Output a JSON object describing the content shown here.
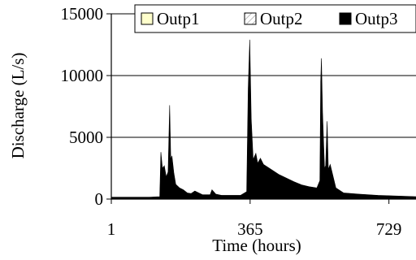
{
  "chart_data": {
    "type": "area",
    "title": "",
    "xlabel": "Time (hours)",
    "ylabel": "Discharge (L/s)",
    "xlim": [
      1,
      800
    ],
    "ylim": [
      0,
      15000
    ],
    "x_ticks": [
      1,
      365,
      729
    ],
    "x_tick_labels": [
      "1",
      "365",
      "729"
    ],
    "y_ticks": [
      0,
      5000,
      10000,
      15000
    ],
    "y_tick_labels": [
      "0",
      "5000",
      "10000",
      "15000"
    ],
    "grid": "horizontal",
    "legend_position": "top",
    "series": [
      {
        "name": "Outp1",
        "fill": "#ffffcc",
        "pattern": "solid",
        "x": [
          1,
          150,
          240,
          365,
          550,
          800
        ],
        "values": [
          0,
          0,
          0,
          0,
          0,
          0
        ]
      },
      {
        "name": "Outp2",
        "fill": "#c8c8c8",
        "pattern": "diagonal-hatch",
        "x": [
          1,
          100,
          120,
          140,
          160,
          190,
          240,
          300,
          340,
          355,
          365,
          385,
          420,
          470,
          530,
          552,
          562,
          575,
          600,
          640,
          700,
          800
        ],
        "values": [
          50,
          50,
          60,
          900,
          1200,
          400,
          200,
          150,
          150,
          250,
          500,
          1800,
          1500,
          1050,
          700,
          900,
          1400,
          1500,
          550,
          300,
          200,
          150
        ]
      },
      {
        "name": "Outp3",
        "fill": "#000000",
        "pattern": "solid",
        "x": [
          1,
          100,
          128,
          131,
          135,
          140,
          145,
          150,
          154,
          157,
          160,
          165,
          170,
          180,
          190,
          200,
          210,
          220,
          240,
          260,
          265,
          275,
          290,
          340,
          356,
          360,
          364,
          368,
          373,
          380,
          385,
          392,
          400,
          420,
          440,
          460,
          480,
          500,
          520,
          540,
          548,
          550,
          552,
          555,
          560,
          563,
          567,
          570,
          575,
          590,
          610,
          650,
          700,
          800
        ],
        "values": [
          150,
          150,
          200,
          3800,
          2500,
          2700,
          1800,
          2200,
          7600,
          3200,
          3500,
          2100,
          1200,
          900,
          750,
          500,
          450,
          650,
          350,
          350,
          750,
          400,
          300,
          300,
          600,
          9000,
          12900,
          6500,
          3200,
          3700,
          2900,
          3300,
          2800,
          2400,
          2000,
          1700,
          1400,
          1150,
          1000,
          900,
          1500,
          9500,
          11400,
          7000,
          2500,
          2700,
          6300,
          2400,
          2800,
          900,
          500,
          400,
          300,
          200
        ]
      }
    ]
  }
}
